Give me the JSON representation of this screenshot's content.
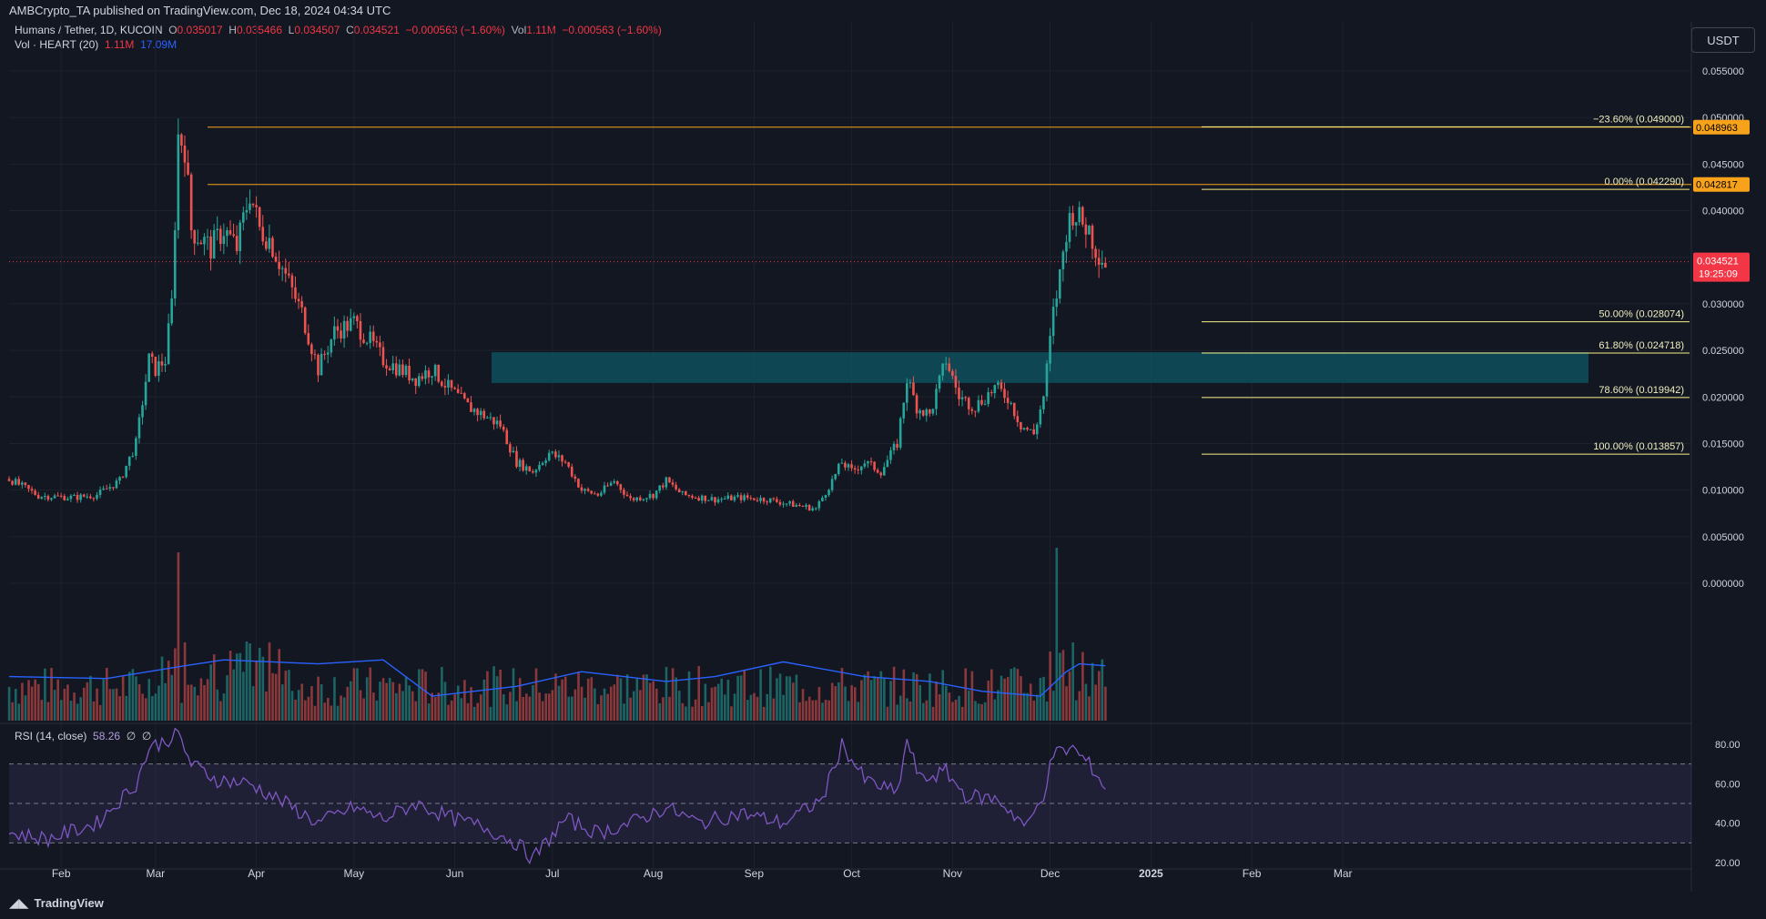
{
  "header": {
    "published": "AMBCrypto_TA published on TradingView.com, Dec 18, 2024 04:34 UTC"
  },
  "legend": {
    "symbol": "Humans / Tether, 1D, KUCOIN",
    "o_label": "O",
    "o_value": "0.035017",
    "h_label": "H",
    "h_value": "0.035466",
    "l_label": "L",
    "l_value": "0.034507",
    "c_label": "C",
    "c_value": "0.034521",
    "change": "−0.000563 (−1.60%)",
    "vol_label": "Vol",
    "vol_value": "1.11M",
    "vol_change": "−0.000563 (−1.60%)",
    "vol_indicator": "Vol · HEART (20)",
    "vol_ind_value1": "1.11M",
    "vol_ind_value2": "17.09M"
  },
  "rsi_legend": {
    "label": "RSI (14, close)",
    "value": "58.26",
    "extra1": "∅",
    "extra2": "∅"
  },
  "currency_button": "USDT",
  "footer": {
    "brand": "TradingView"
  },
  "colors": {
    "background": "#131722",
    "up": "#26a69a",
    "down": "#ef5350",
    "fib": "#f7f087",
    "hline": "#f7a21b",
    "zone": "#0e4f5c",
    "ma": "#2962ff",
    "rsi": "#7e57c2",
    "price_tag": "#f23645"
  },
  "chart_data": {
    "type": "candlestick",
    "symbol": "Humans / Tether, 1D, KUCOIN",
    "y_axis_ticks": [
      "0.055000",
      "0.050000",
      "0.045000",
      "0.040000",
      "0.035000",
      "0.030000",
      "0.025000",
      "0.020000",
      "0.015000",
      "0.010000",
      "0.005000",
      "0.000000"
    ],
    "y_tick_values": [
      0.055,
      0.05,
      0.045,
      0.04,
      0.035,
      0.03,
      0.025,
      0.02,
      0.015,
      0.01,
      0.005,
      0.0
    ],
    "x_axis_ticks": [
      "Feb",
      "Mar",
      "Apr",
      "May",
      "Jun",
      "Jul",
      "Aug",
      "Sep",
      "Oct",
      "Nov",
      "Dec",
      "2025",
      "Feb",
      "Mar"
    ],
    "close_path": [
      [
        "2024-01-16",
        0.0112
      ],
      [
        "2024-01-25",
        0.0094
      ],
      [
        "2024-02-05",
        0.0092
      ],
      [
        "2024-02-12",
        0.0095
      ],
      [
        "2024-02-19",
        0.011
      ],
      [
        "2024-02-24",
        0.015
      ],
      [
        "2024-02-28",
        0.024
      ],
      [
        "2024-03-01",
        0.023
      ],
      [
        "2024-03-04",
        0.024
      ],
      [
        "2024-03-06",
        0.03
      ],
      [
        "2024-03-08",
        0.048
      ],
      [
        "2024-03-10",
        0.047
      ],
      [
        "2024-03-12",
        0.038
      ],
      [
        "2024-03-15",
        0.037
      ],
      [
        "2024-03-18",
        0.036
      ],
      [
        "2024-03-22",
        0.038
      ],
      [
        "2024-03-26",
        0.036
      ],
      [
        "2024-03-30",
        0.042
      ],
      [
        "2024-04-02",
        0.038
      ],
      [
        "2024-04-05",
        0.037
      ],
      [
        "2024-04-10",
        0.033
      ],
      [
        "2024-04-15",
        0.029
      ],
      [
        "2024-04-20",
        0.023
      ],
      [
        "2024-04-25",
        0.027
      ],
      [
        "2024-05-01",
        0.028
      ],
      [
        "2024-05-06",
        0.026
      ],
      [
        "2024-05-10",
        0.024
      ],
      [
        "2024-05-15",
        0.023
      ],
      [
        "2024-05-20",
        0.022
      ],
      [
        "2024-05-25",
        0.023
      ],
      [
        "2024-05-30",
        0.021
      ],
      [
        "2024-06-05",
        0.019
      ],
      [
        "2024-06-10",
        0.018
      ],
      [
        "2024-06-15",
        0.017
      ],
      [
        "2024-06-20",
        0.013
      ],
      [
        "2024-06-25",
        0.012
      ],
      [
        "2024-06-30",
        0.014
      ],
      [
        "2024-07-05",
        0.013
      ],
      [
        "2024-07-10",
        0.01
      ],
      [
        "2024-07-15",
        0.0095
      ],
      [
        "2024-07-20",
        0.011
      ],
      [
        "2024-07-25",
        0.009
      ],
      [
        "2024-08-01",
        0.0095
      ],
      [
        "2024-08-05",
        0.011
      ],
      [
        "2024-08-10",
        0.0095
      ],
      [
        "2024-08-20",
        0.009
      ],
      [
        "2024-08-28",
        0.0092
      ],
      [
        "2024-09-05",
        0.009
      ],
      [
        "2024-09-12",
        0.0085
      ],
      [
        "2024-09-20",
        0.008
      ],
      [
        "2024-09-25",
        0.011
      ],
      [
        "2024-09-28",
        0.013
      ],
      [
        "2024-10-01",
        0.012
      ],
      [
        "2024-10-05",
        0.013
      ],
      [
        "2024-10-10",
        0.012
      ],
      [
        "2024-10-15",
        0.015
      ],
      [
        "2024-10-18",
        0.022
      ],
      [
        "2024-10-21",
        0.019
      ],
      [
        "2024-10-25",
        0.018
      ],
      [
        "2024-10-30",
        0.024
      ],
      [
        "2024-11-03",
        0.02
      ],
      [
        "2024-11-08",
        0.019
      ],
      [
        "2024-11-14",
        0.021
      ],
      [
        "2024-11-18",
        0.02
      ],
      [
        "2024-11-22",
        0.017
      ],
      [
        "2024-11-26",
        0.016
      ],
      [
        "2024-11-29",
        0.02
      ],
      [
        "2024-12-02",
        0.029
      ],
      [
        "2024-12-04",
        0.033
      ],
      [
        "2024-12-06",
        0.038
      ],
      [
        "2024-12-08",
        0.04
      ],
      [
        "2024-12-10",
        0.039
      ],
      [
        "2024-12-13",
        0.038
      ],
      [
        "2024-12-15",
        0.036
      ],
      [
        "2024-12-18",
        0.0345
      ]
    ],
    "ma_path": [
      [
        "2024-01-16",
        0.0045
      ],
      [
        "2024-02-15",
        0.0043
      ],
      [
        "2024-03-08",
        0.0055
      ],
      [
        "2024-03-22",
        0.0062
      ],
      [
        "2024-04-20",
        0.0058
      ],
      [
        "2024-05-10",
        0.0062
      ],
      [
        "2024-05-25",
        0.0025
      ],
      [
        "2024-06-20",
        0.0035
      ],
      [
        "2024-07-10",
        0.005
      ],
      [
        "2024-08-05",
        0.004
      ],
      [
        "2024-08-20",
        0.0045
      ],
      [
        "2024-09-10",
        0.006
      ],
      [
        "2024-10-05",
        0.0045
      ],
      [
        "2024-10-25",
        0.004
      ],
      [
        "2024-11-10",
        0.003
      ],
      [
        "2024-11-28",
        0.0025
      ],
      [
        "2024-12-06",
        0.005
      ],
      [
        "2024-12-10",
        0.0058
      ],
      [
        "2024-12-18",
        0.0056
      ]
    ],
    "rsi_path": [
      [
        "2024-01-16",
        35
      ],
      [
        "2024-01-28",
        32
      ],
      [
        "2024-02-12",
        40
      ],
      [
        "2024-02-24",
        60
      ],
      [
        "2024-02-28",
        78
      ],
      [
        "2024-03-08",
        85
      ],
      [
        "2024-03-12",
        70
      ],
      [
        "2024-03-20",
        62
      ],
      [
        "2024-03-30",
        60
      ],
      [
        "2024-04-10",
        50
      ],
      [
        "2024-04-20",
        40
      ],
      [
        "2024-05-01",
        48
      ],
      [
        "2024-05-10",
        42
      ],
      [
        "2024-05-20",
        50
      ],
      [
        "2024-06-01",
        42
      ],
      [
        "2024-06-10",
        38
      ],
      [
        "2024-06-20",
        30
      ],
      [
        "2024-06-25",
        22
      ],
      [
        "2024-07-05",
        42
      ],
      [
        "2024-07-15",
        35
      ],
      [
        "2024-07-25",
        40
      ],
      [
        "2024-08-05",
        48
      ],
      [
        "2024-08-15",
        40
      ],
      [
        "2024-08-28",
        45
      ],
      [
        "2024-09-10",
        40
      ],
      [
        "2024-09-22",
        52
      ],
      [
        "2024-09-28",
        80
      ],
      [
        "2024-10-05",
        62
      ],
      [
        "2024-10-15",
        55
      ],
      [
        "2024-10-18",
        82
      ],
      [
        "2024-10-22",
        62
      ],
      [
        "2024-10-30",
        66
      ],
      [
        "2024-11-05",
        54
      ],
      [
        "2024-11-15",
        52
      ],
      [
        "2024-11-24",
        38
      ],
      [
        "2024-11-29",
        55
      ],
      [
        "2024-12-02",
        75
      ],
      [
        "2024-12-08",
        78
      ],
      [
        "2024-12-14",
        68
      ],
      [
        "2024-12-18",
        58
      ]
    ],
    "rsi_ticks": [
      "80.00",
      "60.00",
      "40.00",
      "20.00"
    ],
    "rsi_tick_values": [
      80,
      60,
      40,
      20
    ],
    "rsi_bands": [
      70,
      50,
      30
    ],
    "fib_levels": [
      {
        "label": "−23.60% (0.049000)",
        "value": 0.049
      },
      {
        "label": "0.00% (0.042290)",
        "value": 0.04229
      },
      {
        "label": "50.00% (0.028074)",
        "value": 0.028074
      },
      {
        "label": "61.80% (0.024718)",
        "value": 0.024718
      },
      {
        "label": "78.60% (0.019942)",
        "value": 0.019942
      },
      {
        "label": "100.00% (0.013857)",
        "value": 0.013857
      }
    ],
    "horizontal_lines": [
      {
        "label": "0.048963",
        "value": 0.048963
      },
      {
        "label": "0.042817",
        "value": 0.042817
      }
    ],
    "zone": {
      "top": 0.0248,
      "bottom": 0.0215
    },
    "current_price": {
      "label": "0.034521",
      "timer": "19:25:09",
      "value": 0.034521
    },
    "volume_max_label": "17.09M"
  }
}
